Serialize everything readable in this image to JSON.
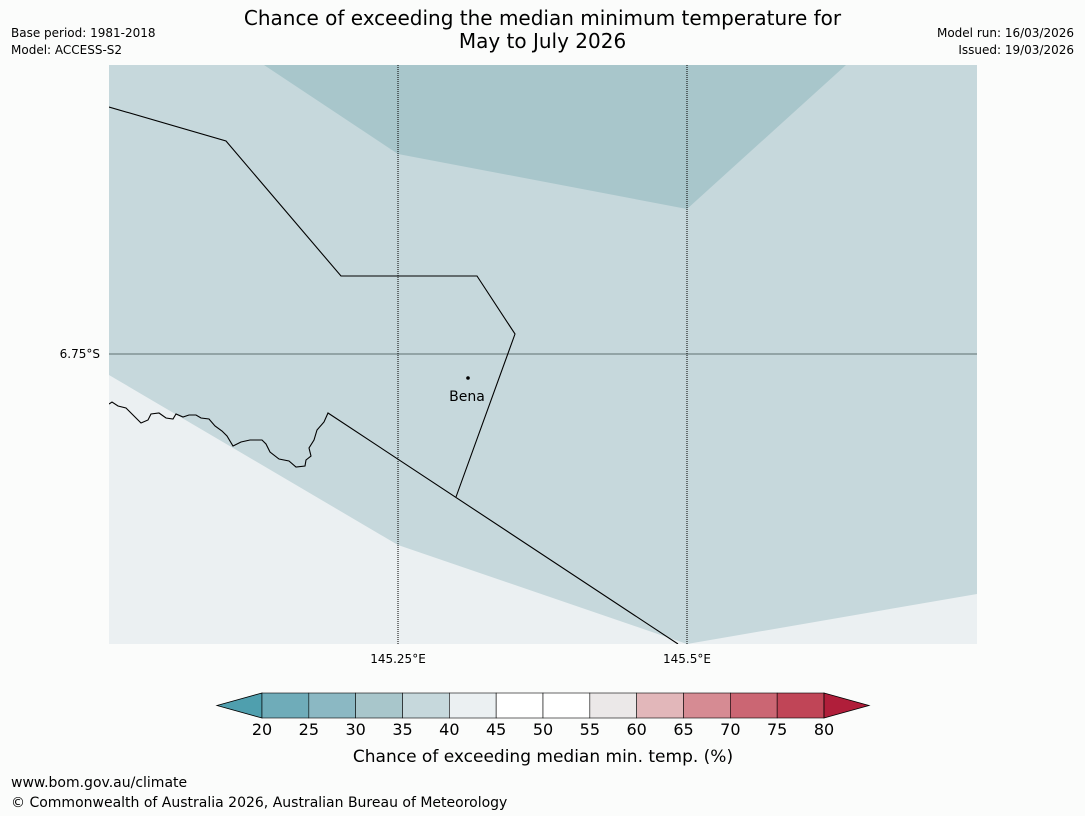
{
  "title": {
    "line1": "Chance of exceeding the median minimum temperature for",
    "line2": "May to July 2026"
  },
  "meta": {
    "base_period": "Base period: 1981-2018",
    "model": "Model: ACCESS-S2",
    "model_run": "Model run: 16/03/2026",
    "issued": "Issued: 19/03/2026"
  },
  "map": {
    "lat_label": "6.75°S",
    "lon_labels": [
      "145.25°E",
      "145.5°E"
    ],
    "place_name": "Bena",
    "colors": {
      "band_30_35": "#a8c6cb",
      "band_35_40": "#c6d8dc",
      "band_40_45": "#ebf0f2"
    }
  },
  "colorbar": {
    "ticks": [
      "20",
      "25",
      "30",
      "35",
      "40",
      "45",
      "50",
      "55",
      "60",
      "65",
      "70",
      "75",
      "80"
    ],
    "colors": [
      "#6facb9",
      "#8bb8c3",
      "#a8c6cb",
      "#c6d8dc",
      "#ebf0f2",
      "#ffffff",
      "#ffffff",
      "#ebe8e8",
      "#e2b7ba",
      "#d68b93",
      "#cb6673",
      "#c04557"
    ],
    "low_extend_color": "#4f9fae",
    "high_extend_color": "#b01e3a",
    "label": "Chance of exceeding median min. temp. (%)"
  },
  "footer": {
    "url": "www.bom.gov.au/climate",
    "copyright": "© Commonwealth of Australia 2026, Australian Bureau of Meteorology"
  }
}
